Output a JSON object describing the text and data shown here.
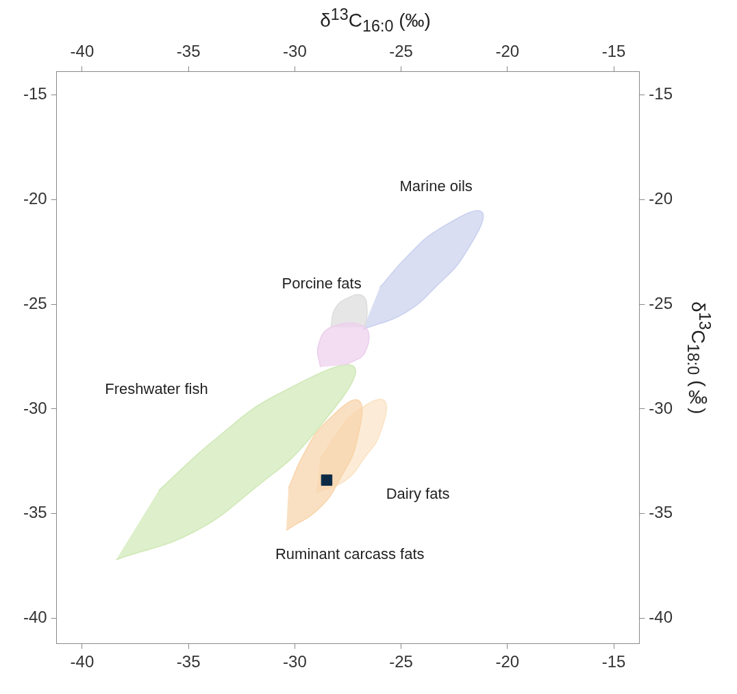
{
  "chart_data": {
    "type": "scatter",
    "x2label": "δ$^{13}$C$_{16:0}$ (‰)",
    "y2label": "δ$^{13}$C$_{18:0}$ (‰)",
    "xlim": [
      -41.2,
      -13.8
    ],
    "xticks": [
      -40,
      -35,
      -30,
      -25,
      -20,
      -15
    ],
    "ylim": [
      -41.2,
      -13.9
    ],
    "yticks": [
      -40,
      -35,
      -30,
      -25,
      -20,
      -15
    ],
    "x2lim": [
      -41.2,
      -13.8
    ],
    "x2ticks": [
      -40,
      -35,
      -30,
      -25,
      -20,
      -15
    ],
    "y2lim": [
      -41.2,
      -13.9
    ],
    "y2ticks": [
      -40,
      -35,
      -30,
      -25,
      -20,
      -15
    ],
    "grid": false,
    "legend": false,
    "series": [
      {
        "type": "area",
        "name": "Marine oils",
        "color": "#c9d0ee",
        "x": [
          -26.8,
          -24.8,
          -23.3,
          -22.0,
          -21.2,
          -23.2,
          -24.7,
          -26.0
        ],
        "values": [
          -26.2,
          -25.4,
          -24.1,
          -22.6,
          -20.6,
          -21.4,
          -22.7,
          -24.2
        ]
      },
      {
        "type": "area",
        "name": "Freshwater fish",
        "color": "#cfe8b5",
        "x": [
          -38.4,
          -34.8,
          -31.9,
          -29.2,
          -27.2,
          -30.8,
          -33.8,
          -36.4
        ],
        "values": [
          -37.2,
          -35.9,
          -33.8,
          -31.3,
          -28.0,
          -29.3,
          -31.5,
          -33.9
        ]
      },
      {
        "type": "area",
        "name": "Dairy fats",
        "color": "#fbe3c4",
        "x": [
          -29.0,
          -27.6,
          -26.7,
          -26.0,
          -25.8,
          -27.2,
          -28.1,
          -28.8
        ],
        "values": [
          -34.0,
          -33.4,
          -32.3,
          -31.2,
          -29.6,
          -30.2,
          -31.3,
          -32.4
        ]
      },
      {
        "type": "area",
        "name": "Ruminant carcass fats",
        "color": "#f8d3a8",
        "x": [
          -30.4,
          -28.8,
          -27.8,
          -27.1,
          -27.0,
          -28.6,
          -29.6,
          -30.3
        ],
        "values": [
          -35.8,
          -34.7,
          -33.2,
          -31.6,
          -29.6,
          -30.7,
          -32.2,
          -33.8
        ]
      },
      {
        "type": "area",
        "name": "Porcine fats",
        "color": "#dcdcdc",
        "x": [
          -28.3,
          -28.1,
          -27.5,
          -26.8,
          -26.6,
          -26.7
        ],
        "values": [
          -26.1,
          -25.2,
          -24.7,
          -24.6,
          -25.3,
          -26.1
        ]
      },
      {
        "type": "area",
        "color": "#eccfec",
        "x": [
          -28.8,
          -28.9,
          -28.3,
          -26.7,
          -26.7,
          -27.6
        ],
        "values": [
          -28.0,
          -27.0,
          -26.1,
          -26.1,
          -27.3,
          -27.9
        ]
      },
      {
        "color": "#0d2a45",
        "marker": "square",
        "x": [
          -28.5
        ],
        "values": [
          -33.4
        ]
      }
    ]
  }
}
